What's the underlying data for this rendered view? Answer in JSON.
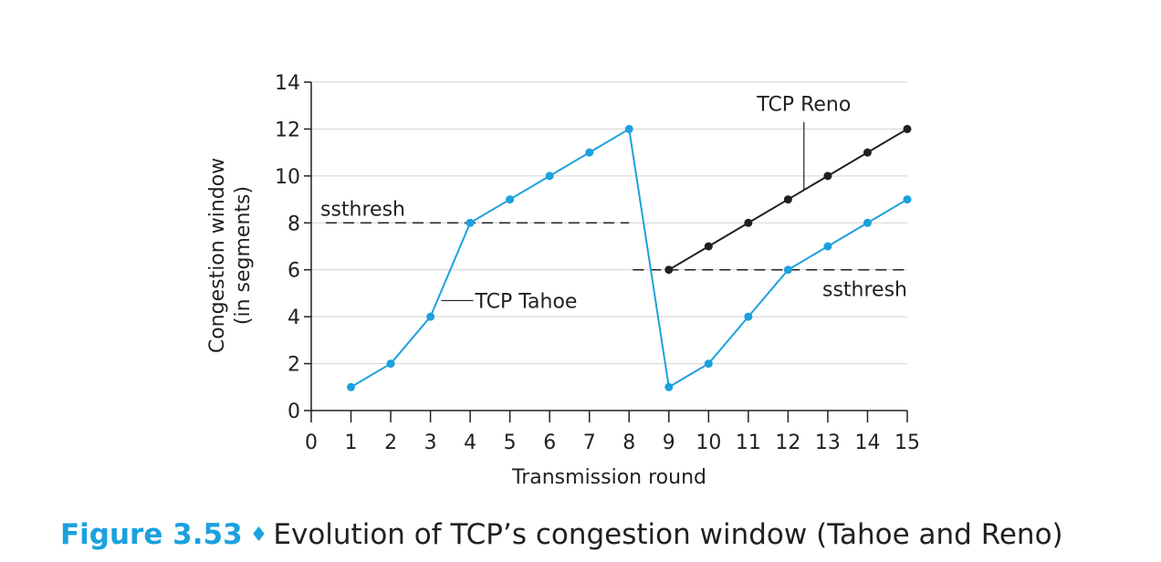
{
  "chart_data": {
    "type": "line",
    "xlabel": "Transmission round",
    "ylabel": [
      "Congestion window",
      "(in segments)"
    ],
    "xlim": [
      0,
      15
    ],
    "ylim": [
      0,
      14
    ],
    "x_ticks": [
      0,
      1,
      2,
      3,
      4,
      5,
      6,
      7,
      8,
      9,
      10,
      11,
      12,
      13,
      14,
      15
    ],
    "y_ticks": [
      0,
      2,
      4,
      6,
      8,
      10,
      12,
      14
    ],
    "grid": "horizontal",
    "series": [
      {
        "name": "TCP Tahoe",
        "color": "#1ba1dd",
        "x": [
          1,
          2,
          3,
          4,
          5,
          6,
          7,
          8,
          9,
          10,
          11,
          12,
          13,
          14,
          15
        ],
        "y": [
          1,
          2,
          4,
          8,
          9,
          10,
          11,
          12,
          1,
          2,
          4,
          6,
          7,
          8,
          9
        ]
      },
      {
        "name": "TCP Reno",
        "color": "#231f20",
        "x": [
          9,
          10,
          11,
          12,
          13,
          14,
          15
        ],
        "y": [
          6,
          7,
          8,
          9,
          10,
          11,
          12
        ]
      }
    ],
    "thresholds": [
      {
        "label": "ssthresh",
        "y": 8,
        "x": [
          0,
          8
        ]
      },
      {
        "label": "ssthresh",
        "y": 6,
        "x": [
          8,
          15
        ]
      }
    ]
  },
  "caption": {
    "label": "Figure 3.53",
    "symbol": "♦",
    "text": "Evolution of TCP’s congestion window (Tahoe and Reno)"
  }
}
